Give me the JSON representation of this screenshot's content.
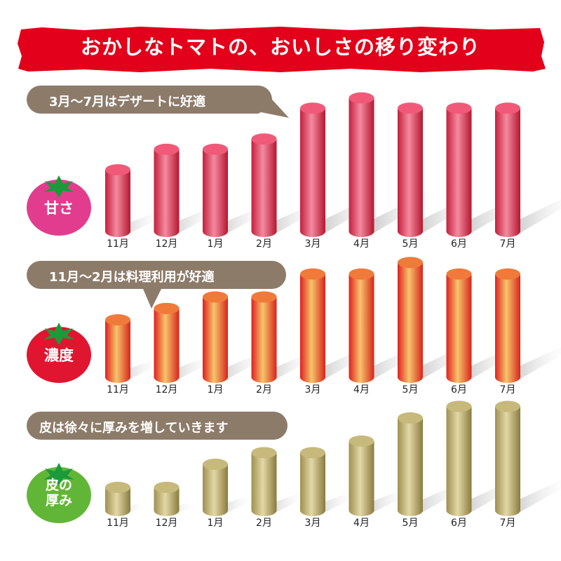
{
  "title": "おかしなトマトの、おいしさの移り変わり",
  "colors": {
    "banner": "#e2001a",
    "bubble": "#8d7b6a",
    "sweet_bar": "#e0405c",
    "rich_bar": "#f06a2a",
    "skin_bar": "#b4a468",
    "sweet_badge": "#e23c8e",
    "rich_badge": "#e0152f",
    "skin_badge": "#62b637",
    "leaf": "#1a9a3a"
  },
  "chart_data": [
    {
      "type": "bar",
      "badge": "甘さ",
      "callout": "3月～7月はデザートに好適",
      "categories": [
        "11月",
        "12月",
        "1月",
        "2月",
        "3月",
        "4月",
        "5月",
        "6月",
        "7月"
      ],
      "values": [
        3,
        4,
        4,
        4.5,
        6,
        6.5,
        6,
        6,
        6
      ],
      "ylim": [
        0,
        7
      ]
    },
    {
      "type": "bar",
      "badge": "濃度",
      "callout": "11月～2月は料理利用が好適",
      "categories": [
        "11月",
        "12月",
        "1月",
        "2月",
        "3月",
        "4月",
        "5月",
        "6月",
        "7月"
      ],
      "values": [
        2.5,
        3,
        3.5,
        3.5,
        4.5,
        4.5,
        5,
        4.5,
        4.5
      ],
      "ylim": [
        0,
        5.5
      ]
    },
    {
      "type": "bar",
      "badge": "皮の\n厚み",
      "callout": "皮は徐々に厚みを増していきます",
      "categories": [
        "11月",
        "12月",
        "1月",
        "2月",
        "3月",
        "4月",
        "5月",
        "6月",
        "7月"
      ],
      "values": [
        1,
        1,
        2,
        2.5,
        2.5,
        3,
        4,
        4.5,
        4.5
      ],
      "ylim": [
        0,
        5
      ]
    }
  ]
}
